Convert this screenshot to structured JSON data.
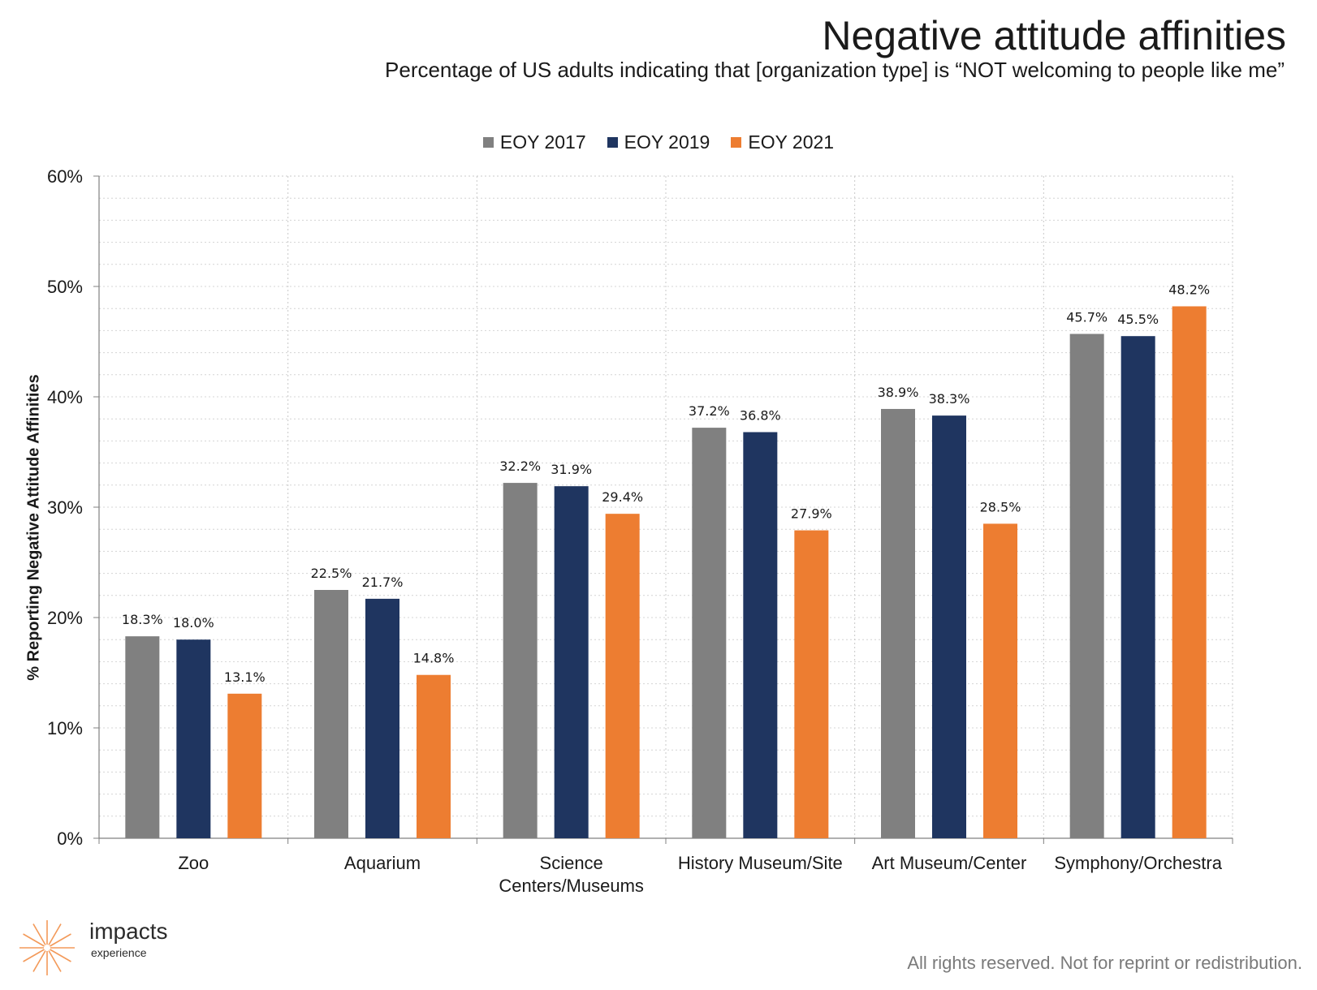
{
  "chart_data": {
    "type": "bar",
    "title": "Negative attitude affinities",
    "subtitle": "Percentage of US adults indicating that [organization type] is “NOT welcoming to people like me”",
    "ylabel": "% Reporting Negative Attitude Affinities",
    "xlabel": "",
    "ylim": [
      0,
      60
    ],
    "yticks": [
      "0%",
      "10%",
      "20%",
      "30%",
      "40%",
      "50%",
      "60%"
    ],
    "grid": true,
    "legend_position": "top-center",
    "categories": [
      [
        "Zoo"
      ],
      [
        "Aquarium"
      ],
      [
        "Science",
        "Centers/Museums"
      ],
      [
        "History Museum/Site"
      ],
      [
        "Art Museum/Center"
      ],
      [
        "Symphony/Orchestra"
      ]
    ],
    "series": [
      {
        "name": "EOY 2017",
        "color": "#808080",
        "values": [
          18.3,
          22.5,
          32.2,
          37.2,
          38.9,
          45.7
        ]
      },
      {
        "name": "EOY 2019",
        "color": "#1f3560",
        "values": [
          18.0,
          21.7,
          31.9,
          36.8,
          38.3,
          45.5
        ]
      },
      {
        "name": "EOY 2021",
        "color": "#ed7d31",
        "values": [
          13.1,
          14.8,
          29.4,
          27.9,
          28.5,
          48.2
        ]
      }
    ],
    "data_labels": [
      [
        "18.3%",
        "22.5%",
        "32.2%",
        "37.2%",
        "38.9%",
        "45.7%"
      ],
      [
        "18.0%",
        "21.7%",
        "31.9%",
        "36.8%",
        "38.3%",
        "45.5%"
      ],
      [
        "13.1%",
        "14.8%",
        "29.4%",
        "27.9%",
        "28.5%",
        "48.2%"
      ]
    ]
  },
  "logo": {
    "word": "impacts",
    "sub": "experience",
    "color": "#f39a5a"
  },
  "footer": "All rights reserved. Not for reprint or redistribution."
}
